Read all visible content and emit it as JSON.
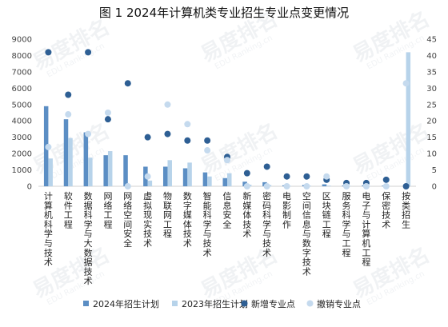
{
  "chart_data": {
    "type": "bar",
    "title": "图 1 2024年计算机类专业招生专业点变更情况",
    "categories": [
      "计算机科学与技术",
      "软件工程",
      "数据科学与大数据技术",
      "网络工程",
      "网络空间安全",
      "虚拟现实技术",
      "物联网工程",
      "数字媒体技术",
      "智能科学与技术",
      "信息安全",
      "新媒体技术",
      "密码科学与技术",
      "电影制作",
      "空间信息与数字技术",
      "区块链工程",
      "服务科学与工程",
      "电子与计算机工程",
      "保密技术",
      "按类招生"
    ],
    "y_left": {
      "min": 0,
      "max": 9000,
      "ticks": [
        0,
        1000,
        2000,
        3000,
        4000,
        5000,
        6000,
        7000,
        8000,
        9000
      ]
    },
    "y_right": {
      "min": 0,
      "max": 45,
      "ticks": [
        0,
        5,
        10,
        15,
        20,
        25,
        30,
        35,
        40,
        45
      ]
    },
    "series": [
      {
        "name": "2024年招生计划",
        "kind": "bar",
        "axis": "left",
        "color": "#5b8ec4",
        "values": [
          4900,
          4100,
          3300,
          1900,
          1900,
          1200,
          1200,
          1100,
          850,
          500,
          280,
          250,
          60,
          80,
          120,
          50,
          60,
          40,
          0
        ]
      },
      {
        "name": "2023年招生计划",
        "kind": "bar",
        "axis": "left",
        "color": "#b7d3ea",
        "values": [
          1700,
          2950,
          1750,
          2150,
          0,
          350,
          1600,
          1450,
          600,
          800,
          100,
          80,
          30,
          40,
          40,
          30,
          20,
          10,
          8200
        ]
      },
      {
        "name": "新增专业点",
        "kind": "dot",
        "axis": "right",
        "color": "#2e5f94",
        "values": [
          41,
          28,
          41,
          20.5,
          31.5,
          15,
          16,
          14,
          14,
          9,
          4,
          6,
          3,
          3,
          2,
          1,
          1,
          2,
          0
        ]
      },
      {
        "name": "撤销专业点",
        "kind": "dot",
        "axis": "right",
        "color": "#c5daee",
        "values": [
          12,
          22,
          16,
          22.5,
          0,
          3,
          25,
          19,
          11,
          8,
          0,
          0,
          0,
          0,
          3,
          0,
          0,
          0,
          31.5
        ]
      }
    ],
    "legend_position": "bottom",
    "grid": false
  },
  "watermark": {
    "brand": "易度排名",
    "sub": "EDU Ranking.cn"
  }
}
